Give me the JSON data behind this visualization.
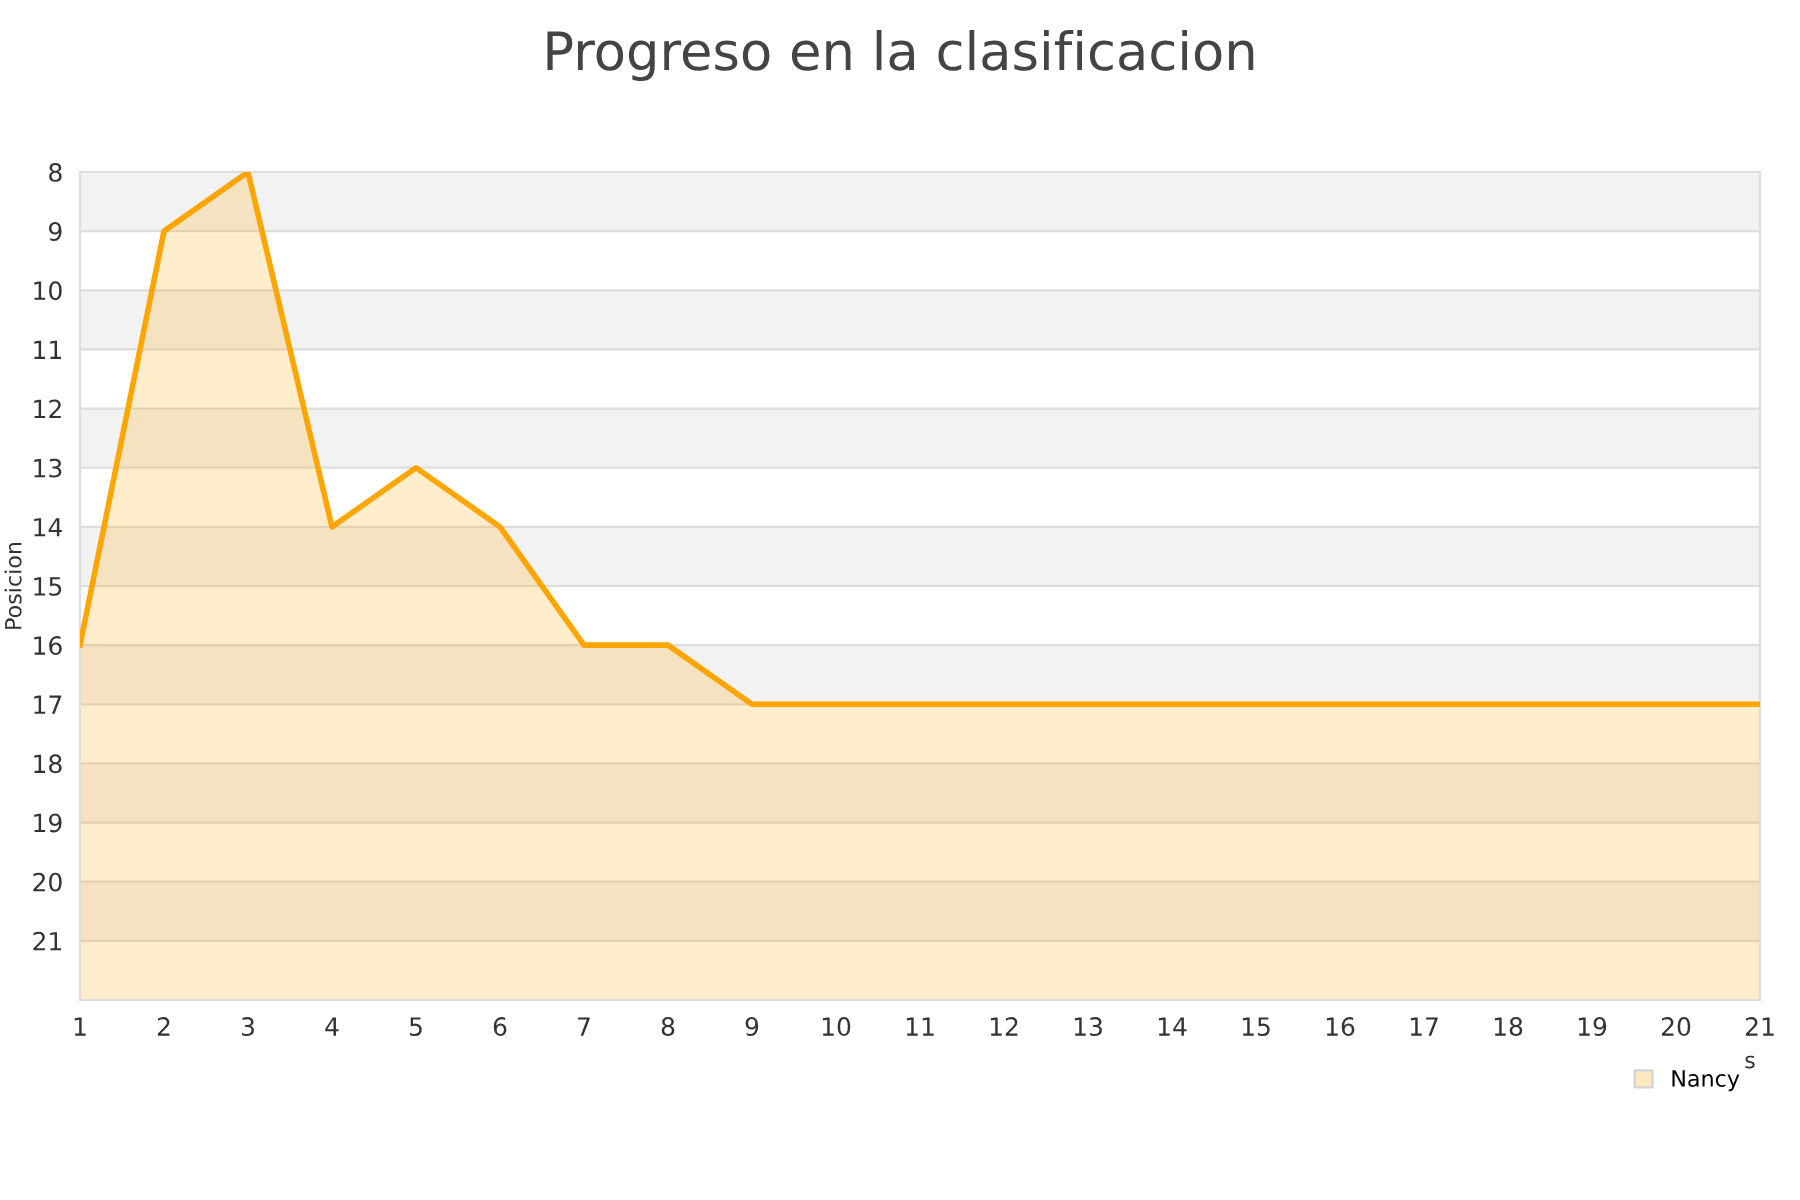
{
  "chart_data": {
    "type": "area",
    "title": "Progreso en la clasificacion",
    "xlabel": "s",
    "ylabel": "Posicion",
    "x": [
      1,
      2,
      3,
      4,
      5,
      6,
      7,
      8,
      9,
      10,
      11,
      12,
      13,
      14,
      15,
      16,
      17,
      18,
      19,
      20,
      21
    ],
    "series": [
      {
        "name": "Nancy",
        "color": "#ffa500",
        "values": [
          16,
          9,
          8,
          14,
          13,
          14,
          16,
          16,
          17,
          17,
          17,
          17,
          17,
          17,
          17,
          17,
          17,
          17,
          17,
          17,
          17
        ]
      }
    ],
    "xlim": [
      1,
      21
    ],
    "xticks": [
      1,
      2,
      3,
      4,
      5,
      6,
      7,
      8,
      9,
      10,
      11,
      12,
      13,
      14,
      15,
      16,
      17,
      18,
      19,
      20,
      21
    ],
    "ylim": [
      22,
      8
    ],
    "yticks": [
      8,
      9,
      10,
      11,
      12,
      13,
      14,
      15,
      16,
      17,
      18,
      19,
      20,
      21
    ],
    "bands": [
      {
        "axis": "y",
        "from": 8,
        "to": 9,
        "color": "#f2f2f2"
      },
      {
        "axis": "y",
        "from": 10,
        "to": 11,
        "color": "#f2f2f2"
      },
      {
        "axis": "y",
        "from": 12,
        "to": 13,
        "color": "#f2f2f2"
      },
      {
        "axis": "y",
        "from": 14,
        "to": 15,
        "color": "#f2f2f2"
      },
      {
        "axis": "y",
        "from": 16,
        "to": 17,
        "color": "#f2f2f2"
      },
      {
        "axis": "y",
        "from": 18,
        "to": 19,
        "color": "#f2f2f2"
      },
      {
        "axis": "y",
        "from": 20,
        "to": 21,
        "color": "#f2f2f2"
      }
    ],
    "grid": "y",
    "legend": "bottom right"
  }
}
